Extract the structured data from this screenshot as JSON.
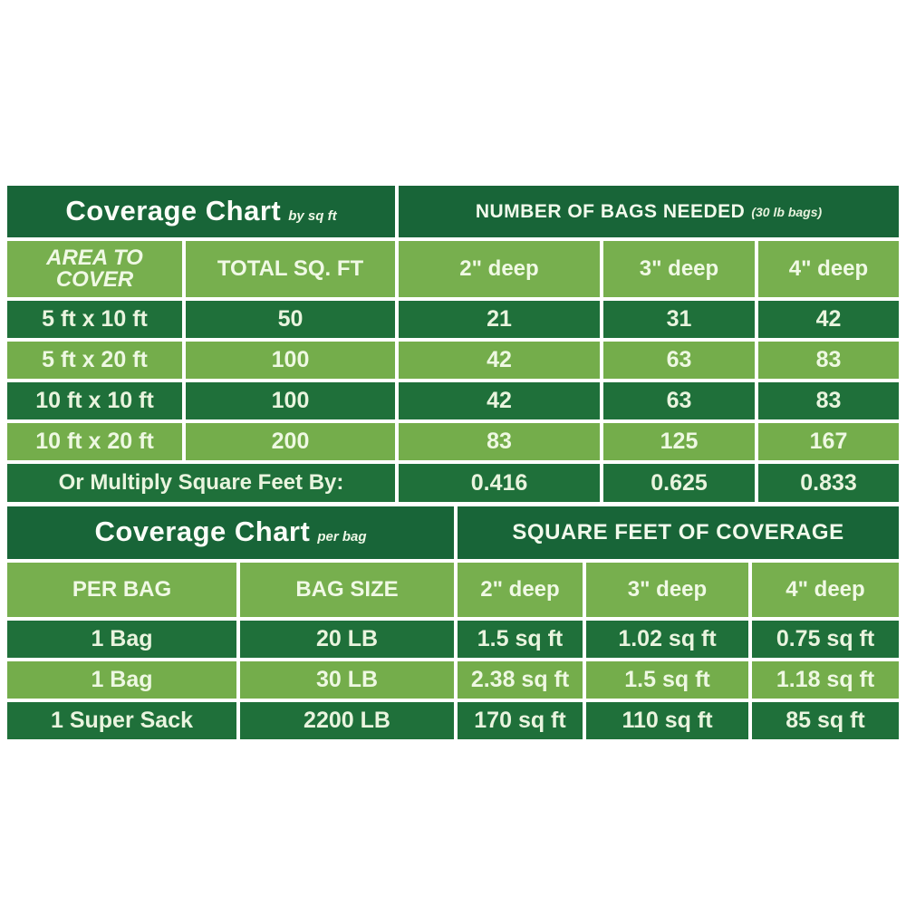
{
  "colors": {
    "background": "#ffffff",
    "title_band_green": "#186538",
    "dark_row_green": "#1f703a",
    "light_row_green": "#74ad4b",
    "text_light": "#e9f4de"
  },
  "table1": {
    "title": "Coverage Chart",
    "title_note": "by sq ft",
    "bags_header": "NUMBER OF BAGS NEEDED",
    "bags_note": "(30 lb bags)",
    "col_headers": [
      "AREA TO COVER",
      "TOTAL SQ. FT",
      "2\" deep",
      "3\" deep",
      "4\" deep"
    ],
    "rows": [
      [
        "5 ft x 10 ft",
        "50",
        "21",
        "31",
        "42"
      ],
      [
        "5 ft x 20 ft",
        "100",
        "42",
        "63",
        "83"
      ],
      [
        "10 ft x 10 ft",
        "100",
        "42",
        "63",
        "83"
      ],
      [
        "10 ft x 20 ft",
        "200",
        "83",
        "125",
        "167"
      ]
    ],
    "footer_label": "Or Multiply Square Feet By:",
    "footer_values": [
      "0.416",
      "0.625",
      "0.833"
    ]
  },
  "table2": {
    "title": "Coverage Chart",
    "title_note": "per bag",
    "coverage_header": "SQUARE FEET OF COVERAGE",
    "col_headers": [
      "PER BAG",
      "BAG SIZE",
      "2\" deep",
      "3\" deep",
      "4\" deep"
    ],
    "rows": [
      [
        "1 Bag",
        "20 LB",
        "1.5 sq ft",
        "1.02 sq ft",
        "0.75 sq ft"
      ],
      [
        "1 Bag",
        "30 LB",
        "2.38 sq ft",
        "1.5 sq ft",
        "1.18 sq ft"
      ],
      [
        "1 Super Sack",
        "2200 LB",
        "170 sq ft",
        "110 sq ft",
        "85 sq ft"
      ]
    ]
  },
  "chart_data": [
    {
      "type": "table",
      "title": "Coverage Chart by sq ft",
      "group_header": "NUMBER OF BAGS NEEDED (30 lb bags)",
      "columns": [
        "AREA TO COVER",
        "TOTAL SQ. FT",
        "2\" deep",
        "3\" deep",
        "4\" deep"
      ],
      "rows": [
        [
          "5 ft x 10 ft",
          50,
          21,
          31,
          42
        ],
        [
          "5 ft x 20 ft",
          100,
          42,
          63,
          83
        ],
        [
          "10 ft x 10 ft",
          100,
          42,
          63,
          83
        ],
        [
          "10 ft x 20 ft",
          200,
          83,
          125,
          167
        ]
      ],
      "footer": [
        "Or Multiply Square Feet By:",
        0.416,
        0.625,
        0.833
      ]
    },
    {
      "type": "table",
      "title": "Coverage Chart per bag",
      "group_header": "SQUARE FEET OF COVERAGE",
      "columns": [
        "PER BAG",
        "BAG SIZE",
        "2\" deep",
        "3\" deep",
        "4\" deep"
      ],
      "rows": [
        [
          "1 Bag",
          "20 LB",
          "1.5 sq ft",
          "1.02 sq ft",
          "0.75 sq ft"
        ],
        [
          "1 Bag",
          "30 LB",
          "2.38 sq ft",
          "1.5 sq ft",
          "1.18 sq ft"
        ],
        [
          "1 Super Sack",
          "2200 LB",
          "170 sq ft",
          "110 sq ft",
          "85 sq ft"
        ]
      ]
    }
  ]
}
